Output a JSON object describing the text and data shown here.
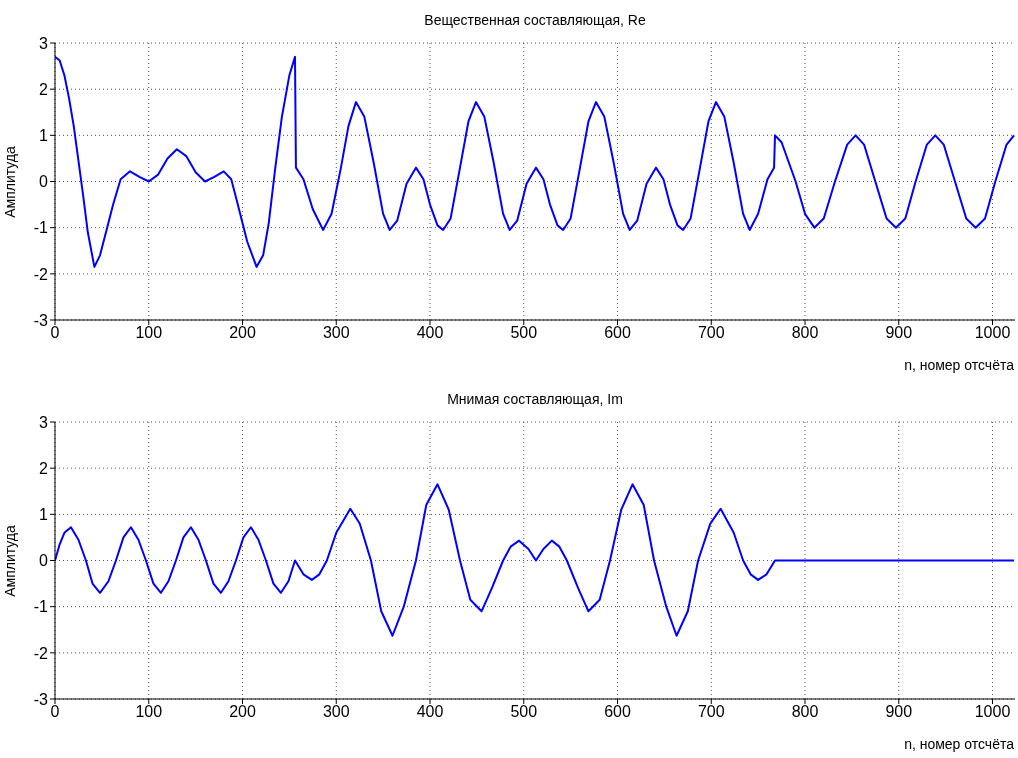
{
  "chart_data": [
    {
      "type": "line",
      "title": "Вещественная составляющая, Re",
      "xlabel": "n, номер отсчёта",
      "ylabel": "Амплитуда",
      "xlim": [
        0,
        1024
      ],
      "xticks": [
        0,
        100,
        200,
        300,
        400,
        500,
        600,
        700,
        800,
        900,
        1000
      ],
      "ylim": [
        -3,
        3
      ],
      "yticks": [
        -3,
        -2,
        -1,
        0,
        1,
        2,
        3
      ],
      "grid": true,
      "x": [
        0,
        5,
        10,
        15,
        20,
        25,
        30,
        35,
        42,
        48,
        55,
        62,
        70,
        80,
        90,
        100,
        110,
        120,
        130,
        140,
        150,
        160,
        170,
        180,
        188,
        195,
        205,
        215,
        222,
        228,
        235,
        242,
        250,
        256,
        257,
        265,
        275,
        286,
        295,
        305,
        313,
        321,
        330,
        340,
        350,
        357,
        365,
        375,
        385,
        393,
        400,
        408,
        414,
        422,
        432,
        441,
        449,
        458,
        468,
        478,
        485,
        493,
        503,
        513,
        521,
        528,
        536,
        542,
        550,
        560,
        569,
        577,
        586,
        596,
        606,
        613,
        621,
        631,
        641,
        649,
        656,
        664,
        670,
        678,
        688,
        697,
        705,
        714,
        724,
        734,
        741,
        750,
        760,
        767,
        768,
        775,
        790,
        800,
        810,
        820,
        832,
        845,
        854,
        863,
        875,
        887,
        897,
        907,
        918,
        930,
        939,
        948,
        960,
        972,
        982,
        992,
        1003,
        1015,
        1023
      ],
      "series": [
        {
          "color": "#0000ff",
          "values": [
            2.7,
            2.62,
            2.3,
            1.8,
            1.2,
            0.45,
            -0.3,
            -1.1,
            -1.85,
            -1.6,
            -1.05,
            -0.5,
            0.05,
            0.22,
            0.1,
            0,
            0.15,
            0.5,
            0.7,
            0.55,
            0.2,
            0,
            0.1,
            0.22,
            0.05,
            -0.5,
            -1.3,
            -1.85,
            -1.6,
            -0.9,
            0.3,
            1.4,
            2.3,
            2.7,
            0.3,
            0.05,
            -0.6,
            -1.05,
            -0.7,
            0.3,
            1.2,
            1.72,
            1.4,
            0.4,
            -0.7,
            -1.05,
            -0.85,
            -0.05,
            0.3,
            0.05,
            -0.5,
            -0.95,
            -1.05,
            -0.8,
            0.3,
            1.3,
            1.72,
            1.4,
            0.4,
            -0.7,
            -1.05,
            -0.85,
            -0.05,
            0.3,
            0.05,
            -0.5,
            -0.95,
            -1.05,
            -0.8,
            0.3,
            1.3,
            1.72,
            1.4,
            0.4,
            -0.7,
            -1.05,
            -0.85,
            -0.05,
            0.3,
            0.05,
            -0.5,
            -0.95,
            -1.05,
            -0.8,
            0.3,
            1.3,
            1.72,
            1.4,
            0.4,
            -0.7,
            -1.05,
            -0.7,
            0.05,
            0.3,
            1.0,
            0.85,
            0,
            -0.7,
            -1.0,
            -0.8,
            0,
            0.8,
            1.0,
            0.8,
            0,
            -0.8,
            -1.0,
            -0.8,
            0,
            0.8,
            1.0,
            0.8,
            0,
            -0.8,
            -1.0,
            -0.8,
            0,
            0.8,
            1.0
          ]
        }
      ]
    },
    {
      "type": "line",
      "title": "Мнимая составляющая, Im",
      "xlabel": "n, номер отсчёта",
      "ylabel": "Амплитуда",
      "xlim": [
        0,
        1024
      ],
      "xticks": [
        0,
        100,
        200,
        300,
        400,
        500,
        600,
        700,
        800,
        900,
        1000
      ],
      "ylim": [
        -3,
        3
      ],
      "yticks": [
        -3,
        -2,
        -1,
        0,
        1,
        2,
        3
      ],
      "grid": true,
      "x": [
        0,
        5,
        10,
        17,
        25,
        33,
        40,
        48,
        57,
        65,
        73,
        81,
        89,
        97,
        105,
        113,
        121,
        129,
        137,
        145,
        153,
        161,
        169,
        177,
        185,
        193,
        201,
        209,
        217,
        225,
        233,
        241,
        249,
        256,
        265,
        274,
        282,
        290,
        300,
        315,
        325,
        337,
        348,
        360,
        372,
        385,
        396,
        408,
        420,
        432,
        443,
        455,
        466,
        478,
        486,
        495,
        505,
        513,
        521,
        530,
        538,
        546,
        558,
        569,
        581,
        592,
        604,
        616,
        628,
        639,
        652,
        663,
        675,
        686,
        699,
        710,
        724,
        734,
        742,
        750,
        759,
        768,
        1023
      ],
      "series": [
        {
          "color": "#0000ff",
          "values": [
            0,
            0.35,
            0.6,
            0.72,
            0.45,
            0,
            -0.5,
            -0.7,
            -0.45,
            0,
            0.5,
            0.72,
            0.45,
            0,
            -0.5,
            -0.7,
            -0.45,
            0,
            0.5,
            0.72,
            0.45,
            0,
            -0.5,
            -0.7,
            -0.45,
            0,
            0.5,
            0.72,
            0.45,
            0,
            -0.5,
            -0.7,
            -0.45,
            0,
            -0.3,
            -0.42,
            -0.3,
            0,
            0.6,
            1.12,
            0.8,
            0,
            -1.1,
            -1.63,
            -1.0,
            0,
            1.2,
            1.65,
            1.1,
            0,
            -0.85,
            -1.1,
            -0.6,
            0,
            0.3,
            0.43,
            0.25,
            0,
            0.25,
            0.43,
            0.3,
            0,
            -0.6,
            -1.1,
            -0.85,
            0,
            1.1,
            1.65,
            1.2,
            0,
            -1.0,
            -1.63,
            -1.1,
            0,
            0.8,
            1.12,
            0.6,
            0,
            -0.3,
            -0.42,
            -0.3,
            0,
            0
          ]
        }
      ]
    }
  ]
}
